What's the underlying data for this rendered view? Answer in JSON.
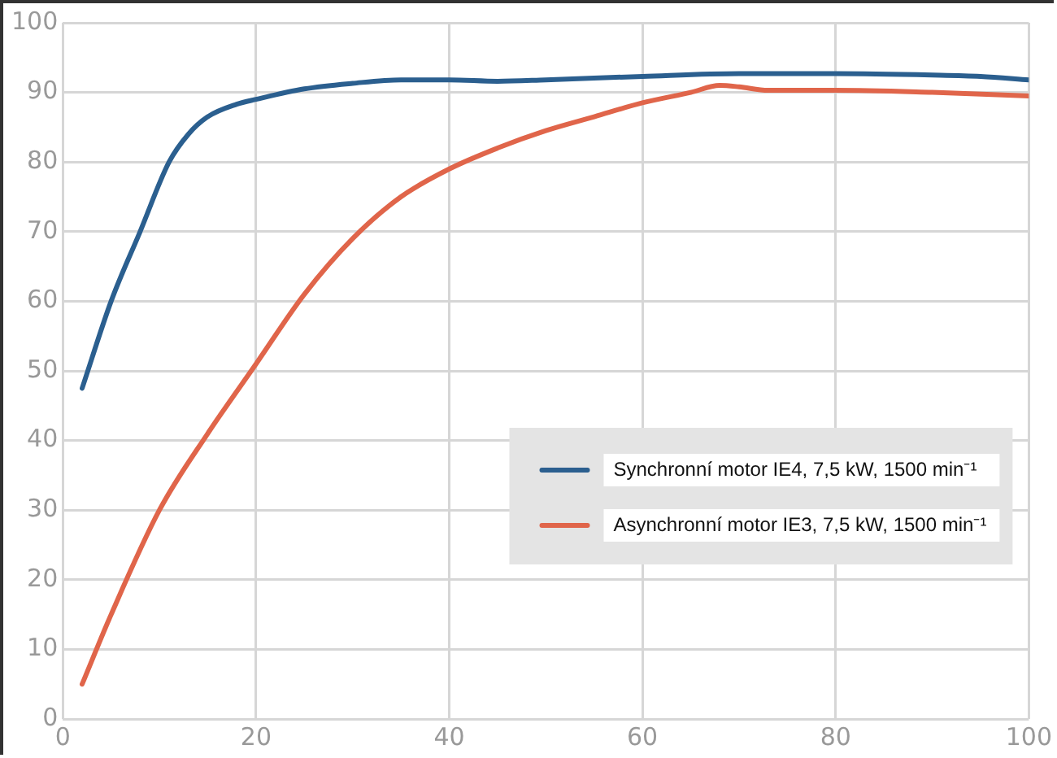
{
  "chart_data": {
    "type": "line",
    "xlim": [
      0,
      100
    ],
    "xticks": [
      0,
      20,
      40,
      60,
      80,
      100
    ],
    "ylim": [
      0,
      100
    ],
    "yticks": [
      0,
      10,
      20,
      30,
      40,
      50,
      60,
      70,
      80,
      90,
      100
    ],
    "grid": true,
    "legend": "bottom right",
    "marker": "none",
    "line_style": "solid",
    "series": [
      {
        "name": "Synchronní motor IE4, 7,5 kW, 1500 min⁻¹",
        "color": "#2b5f8f",
        "x": [
          2,
          5,
          8,
          11,
          13,
          15,
          18,
          20,
          25,
          30,
          35,
          40,
          45,
          50,
          60,
          70,
          80,
          90,
          95,
          100
        ],
        "values": [
          47.5,
          60,
          70,
          80,
          84,
          86.5,
          88.3,
          89,
          90.5,
          91.3,
          91.8,
          91.8,
          91.6,
          91.8,
          92.3,
          92.7,
          92.7,
          92.5,
          92.3,
          91.8
        ]
      },
      {
        "name": "Asynchronní motor IE3, 7,5 kW, 1500 min⁻¹",
        "color": "#e0654a",
        "x": [
          2,
          5,
          10,
          15,
          20,
          25,
          30,
          35,
          40,
          45,
          50,
          55,
          60,
          65,
          68,
          70,
          73,
          80,
          90,
          100
        ],
        "values": [
          5,
          15,
          30,
          41,
          51,
          61,
          69,
          75,
          79,
          82,
          84.5,
          86.5,
          88.5,
          90,
          91,
          90.8,
          90.3,
          90.3,
          90,
          89.5
        ]
      }
    ]
  }
}
